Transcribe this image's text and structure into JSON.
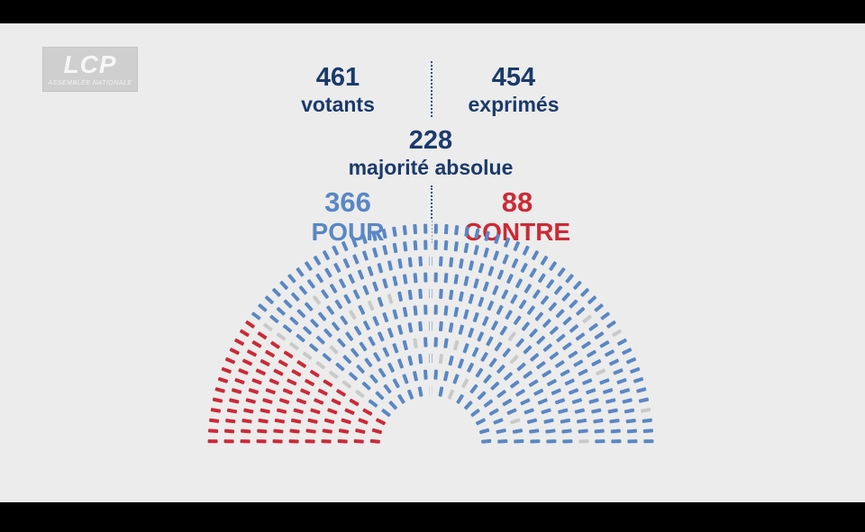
{
  "logo": {
    "main": "LCP",
    "sub": "ASSEMBLÉE NATIONALE"
  },
  "stats": {
    "votants": {
      "value": "461",
      "label": "votants"
    },
    "exprimes": {
      "value": "454",
      "label": "exprimés"
    },
    "majorite": {
      "value": "228",
      "label": "majorité absolue"
    },
    "pour": {
      "value": "366",
      "label": "POUR"
    },
    "contre": {
      "value": "88",
      "label": "CONTRE"
    }
  },
  "colors": {
    "pour": "#5a87c4",
    "contre": "#cc2a36",
    "absent": "#c9c9c9",
    "navy": "#1b3a6b",
    "background": "#ececec"
  },
  "chart_data": {
    "type": "hemicycle",
    "series": [
      {
        "name": "POUR",
        "value": 366
      },
      {
        "name": "CONTRE",
        "value": 88
      }
    ],
    "votants": 461,
    "exprimes": 454,
    "majorite_absolue": 228
  }
}
